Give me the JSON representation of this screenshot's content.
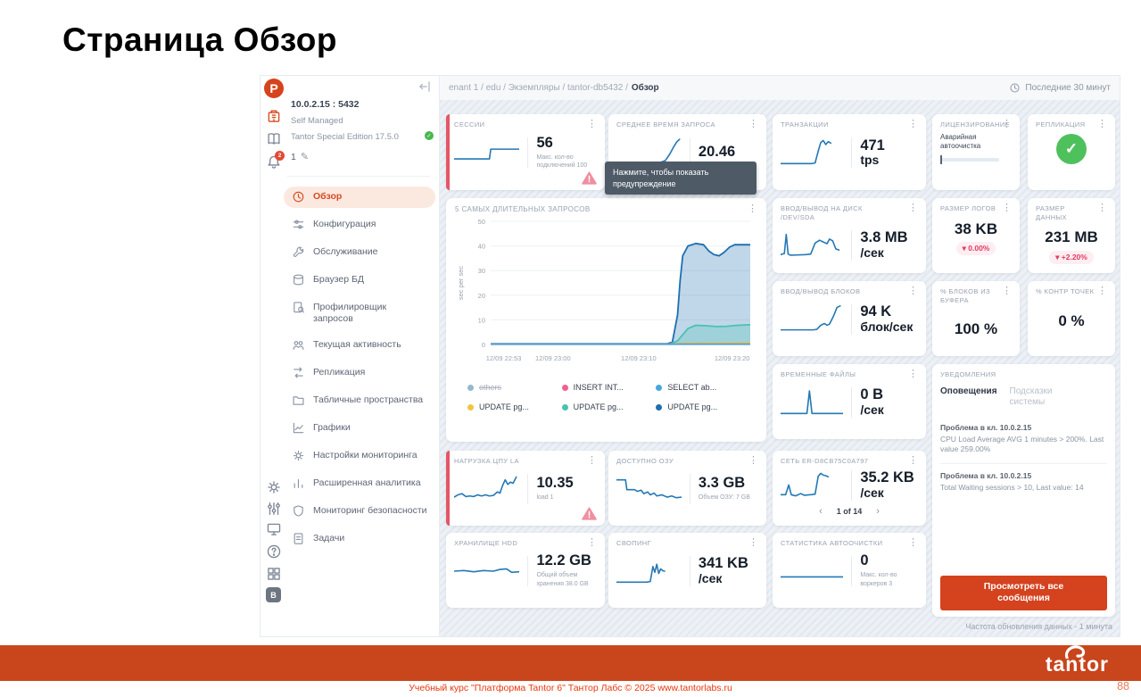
{
  "slide": {
    "title": "Страница Обзор",
    "footer": "Учебный курс \"Платформа Tantor 6\" Тантор Лабс © 2025 www.tantorlabs.ru",
    "page": "88",
    "brand": "tantor"
  },
  "colors": {
    "accent": "#d64a20",
    "footer_bar": "#c9451c",
    "spark_line": "#2478b5",
    "success_green": "#4fc15c",
    "alert_bar_red": "#e45766",
    "badge_red": "#e23a5f",
    "tooltip_bg": "#4e5a66"
  },
  "sidebar": {
    "host": "10.0.2.15 : 5432",
    "managed": "Self Managed",
    "edition": "Tantor Special Edition 17.5.0",
    "instance": "1",
    "bell_badge": "2",
    "bottom_badge": "B",
    "menu": [
      {
        "label": "Обзор",
        "active": true
      },
      {
        "label": "Конфигурация",
        "active": false
      },
      {
        "label": "Обслуживание",
        "active": false
      },
      {
        "label": "Браузер БД",
        "active": false
      },
      {
        "label": "Профилировщик запросов",
        "active": false
      },
      {
        "label": "Текущая активность",
        "active": false
      },
      {
        "label": "Репликация",
        "active": false
      },
      {
        "label": "Табличные пространства",
        "active": false
      },
      {
        "label": "Графики",
        "active": false
      },
      {
        "label": "Настройки мониторинга",
        "active": false
      },
      {
        "label": "Расширенная аналитика",
        "active": false
      },
      {
        "label": "Мониторинг безопасности",
        "active": false
      },
      {
        "label": "Задачи",
        "active": false
      }
    ]
  },
  "topbar": {
    "breadcrumb_path": "enant 1 / edu / Экземпляры / tantor-db5432 /",
    "breadcrumb_current": "Обзор",
    "time_range": "Последние 30 минут"
  },
  "tooltip": {
    "text": "Нажмите, чтобы показать предупреждение"
  },
  "footer_note": "Частота обновления данных - 1 минута",
  "cards": {
    "sessions": {
      "title": "СЕССИИ",
      "value": "56",
      "subtitle": "Макс. кол-во подключений 100",
      "spark": [
        [
          0,
          28
        ],
        [
          54,
          28
        ],
        [
          56,
          62
        ],
        [
          100,
          62
        ]
      ]
    },
    "avg_query": {
      "title": "СРЕДНЕЕ ВРЕМЯ ЗАПРОСА",
      "value": "20.46",
      "spark": [
        [
          0,
          12
        ],
        [
          55,
          12
        ],
        [
          65,
          14
        ],
        [
          75,
          22
        ],
        [
          82,
          45
        ],
        [
          88,
          70
        ],
        [
          93,
          88
        ],
        [
          97,
          96
        ]
      ]
    },
    "transactions": {
      "title": "ТРАНЗАКЦИИ",
      "value": "471",
      "unit": "tps",
      "spark": [
        [
          0,
          12
        ],
        [
          50,
          12
        ],
        [
          55,
          14
        ],
        [
          60,
          55
        ],
        [
          64,
          85
        ],
        [
          68,
          92
        ],
        [
          72,
          78
        ],
        [
          76,
          88
        ],
        [
          80,
          83
        ]
      ]
    },
    "licensing": {
      "title": "ЛИЦЕНЗИРОВАНИЕ",
      "note": "Аварийная автоочистка"
    },
    "replication": {
      "title": "РЕПЛИКАЦИЯ",
      "status_icon": "green-check"
    },
    "disk_io": {
      "title": "ВВОД/ВЫВОД НА ДИСК /DEV/SDA",
      "value": "3.8 MB",
      "unit": "/сек",
      "spark": [
        [
          0,
          18
        ],
        [
          6,
          22
        ],
        [
          9,
          88
        ],
        [
          12,
          20
        ],
        [
          16,
          16
        ],
        [
          40,
          18
        ],
        [
          48,
          20
        ],
        [
          55,
          58
        ],
        [
          62,
          68
        ],
        [
          68,
          62
        ],
        [
          74,
          56
        ],
        [
          78,
          72
        ],
        [
          83,
          66
        ],
        [
          88,
          38
        ],
        [
          93,
          34
        ]
      ]
    },
    "blocks_io": {
      "title": "ВВОД/ВЫВОД БЛОКОВ",
      "value": "94 K",
      "unit": "блок/сек",
      "spark": [
        [
          0,
          14
        ],
        [
          52,
          14
        ],
        [
          58,
          16
        ],
        [
          64,
          30
        ],
        [
          70,
          36
        ],
        [
          74,
          30
        ],
        [
          78,
          34
        ],
        [
          84,
          60
        ],
        [
          90,
          92
        ],
        [
          95,
          97
        ]
      ]
    },
    "temp_files": {
      "title": "ВРЕМЕННЫЕ ФАЙЛЫ",
      "value": "0 B",
      "unit": "/сек",
      "spark": [
        [
          0,
          12
        ],
        [
          42,
          12
        ],
        [
          46,
          90
        ],
        [
          50,
          12
        ],
        [
          100,
          12
        ]
      ]
    },
    "log_size": {
      "title": "РАЗМЕР ЛОГОВ",
      "value": "38 KB",
      "badge": "▾ 0.00%"
    },
    "data_size": {
      "title": "РАЗМЕР ДАННЫХ",
      "value": "231 MB",
      "badge": "▾ +2.20%"
    },
    "buffer_pct": {
      "title": "% БЛОКОВ ИЗ БУФЕРА",
      "value": "100 %"
    },
    "checkpoint_pct": {
      "title": "% КОНТР ТОЧЕК",
      "value": "0 %"
    },
    "cpu_load": {
      "title": "НАГРУЗКА ЦПУ LA",
      "value": "10.35",
      "subtitle": "load 1",
      "spark": [
        [
          0,
          22
        ],
        [
          6,
          30
        ],
        [
          12,
          34
        ],
        [
          18,
          24
        ],
        [
          24,
          26
        ],
        [
          30,
          24
        ],
        [
          36,
          30
        ],
        [
          42,
          26
        ],
        [
          48,
          30
        ],
        [
          54,
          26
        ],
        [
          60,
          28
        ],
        [
          66,
          40
        ],
        [
          70,
          36
        ],
        [
          74,
          62
        ],
        [
          78,
          82
        ],
        [
          82,
          66
        ],
        [
          86,
          74
        ],
        [
          90,
          70
        ],
        [
          95,
          92
        ]
      ]
    },
    "ram": {
      "title": "ДОСТУПНО ОЗУ",
      "value": "3.3 GB",
      "subtitle": "Объем ОЗУ: 7 GB",
      "spark": [
        [
          0,
          82
        ],
        [
          14,
          82
        ],
        [
          16,
          48
        ],
        [
          28,
          48
        ],
        [
          32,
          42
        ],
        [
          38,
          46
        ],
        [
          42,
          34
        ],
        [
          48,
          40
        ],
        [
          52,
          30
        ],
        [
          58,
          36
        ],
        [
          62,
          26
        ],
        [
          70,
          30
        ],
        [
          78,
          22
        ],
        [
          85,
          26
        ],
        [
          92,
          20
        ],
        [
          100,
          22
        ]
      ]
    },
    "network": {
      "title": "СЕТЬ ER-D8CB75C0A797",
      "value": "35.2 KB",
      "unit": "/сек",
      "pager": "1 of 14",
      "spark": [
        [
          0,
          18
        ],
        [
          8,
          18
        ],
        [
          13,
          52
        ],
        [
          17,
          18
        ],
        [
          24,
          14
        ],
        [
          32,
          22
        ],
        [
          38,
          16
        ],
        [
          48,
          18
        ],
        [
          55,
          20
        ],
        [
          60,
          82
        ],
        [
          64,
          92
        ],
        [
          68,
          86
        ],
        [
          72,
          84
        ],
        [
          76,
          80
        ]
      ]
    },
    "storage": {
      "title": "ХРАНИЛИЩЕ HDD",
      "value": "12.2 GB",
      "subtitle": "Общий объем хранения 38.0 GB",
      "spark": [
        [
          0,
          50
        ],
        [
          15,
          52
        ],
        [
          30,
          48
        ],
        [
          45,
          52
        ],
        [
          60,
          50
        ],
        [
          70,
          56
        ],
        [
          80,
          58
        ],
        [
          88,
          46
        ],
        [
          100,
          48
        ]
      ]
    },
    "swap": {
      "title": "СВОПИНГ",
      "value": "341 KB",
      "unit": "/сек",
      "spark": [
        [
          0,
          12
        ],
        [
          46,
          12
        ],
        [
          52,
          14
        ],
        [
          56,
          66
        ],
        [
          59,
          46
        ],
        [
          62,
          74
        ],
        [
          65,
          42
        ],
        [
          68,
          58
        ],
        [
          71,
          52
        ],
        [
          74,
          50
        ]
      ]
    },
    "autovacuum": {
      "title": "СТАТИСТИКА АВТООЧИСТКИ",
      "value": "0",
      "subtitle": "Макс. кол-во воркеров 3",
      "spark": [
        [
          0,
          30
        ],
        [
          100,
          30
        ]
      ]
    }
  },
  "notifications": {
    "title": "УВЕДОМЛЕНИЯ",
    "tabs": [
      "Оповещения",
      "Подсказки системы"
    ],
    "alerts": [
      {
        "title": "Проблема в кл. 10.0.2.15",
        "text": "CPU Load Average AVG 1 minutes > 200%. Last value 259.00%"
      },
      {
        "title": "Проблема в кл. 10.0.2.15",
        "text": "Total Waiting sessions > 10, Last value: 14"
      }
    ],
    "button": "Просмотреть все сообщения"
  },
  "chart_data": {
    "type": "area",
    "title": "5 САМЫХ ДЛИТЕЛЬНЫХ ЗАПРОСОВ",
    "ylabel": "sec per sec",
    "xlabel": "",
    "ylim": [
      0,
      50
    ],
    "yticks": [
      0,
      10,
      20,
      30,
      40,
      50
    ],
    "grid": true,
    "legend_position": "bottom",
    "xticks": [
      {
        "label": "12/09 22:53",
        "pos": 5
      },
      {
        "label": "12/09 23:00",
        "pos": 24
      },
      {
        "label": "12/09 23:10",
        "pos": 57
      },
      {
        "label": "12/09 23:20",
        "pos": 93
      }
    ],
    "series": [
      {
        "name": "UPDATE pg... (6)",
        "color": "#1e6fb0",
        "fill": true,
        "points": [
          [
            0,
            0.3
          ],
          [
            68,
            0.3
          ],
          [
            70,
            1
          ],
          [
            72,
            12
          ],
          [
            73,
            26
          ],
          [
            74,
            36
          ],
          [
            76,
            40
          ],
          [
            79,
            41
          ],
          [
            82,
            40.5
          ],
          [
            84,
            38
          ],
          [
            86,
            36.5
          ],
          [
            88,
            36
          ],
          [
            90,
            37.5
          ],
          [
            92,
            39.5
          ],
          [
            94,
            40.5
          ],
          [
            100,
            40.5
          ]
        ]
      },
      {
        "name": "UPDATE pg... (5)",
        "color": "#49c2b1",
        "fill": true,
        "points": [
          [
            0,
            0.2
          ],
          [
            69,
            0.2
          ],
          [
            72,
            1.5
          ],
          [
            74,
            4
          ],
          [
            76,
            6.5
          ],
          [
            79,
            7.8
          ],
          [
            83,
            7.6
          ],
          [
            87,
            7.3
          ],
          [
            91,
            7.4
          ],
          [
            95,
            7.8
          ],
          [
            100,
            8
          ]
        ]
      },
      {
        "name": "UPDATE pg... (4)",
        "color": "#f3c440",
        "fill": false,
        "points": [
          [
            0,
            0.1
          ],
          [
            70,
            0.1
          ],
          [
            74,
            0.5
          ],
          [
            100,
            0.6
          ]
        ]
      },
      {
        "name": "INSERT INT...",
        "color": "#f0608d",
        "fill": false,
        "points": [
          [
            0,
            0.1
          ],
          [
            100,
            0.1
          ]
        ]
      },
      {
        "name": "SELECT ab...",
        "color": "#46a7dd",
        "fill": false,
        "points": [
          [
            0,
            0.15
          ],
          [
            100,
            0.15
          ]
        ]
      }
    ],
    "legend": [
      {
        "label": "others",
        "color": "#93b9cf",
        "disabled": true
      },
      {
        "label": "INSERT INT...",
        "color": "#f0608d",
        "disabled": false
      },
      {
        "label": "SELECT ab...",
        "color": "#46a7dd",
        "disabled": false
      },
      {
        "label": "UPDATE pg...",
        "color": "#f3c440",
        "disabled": false
      },
      {
        "label": "UPDATE pg...",
        "color": "#49c2b1",
        "disabled": false
      },
      {
        "label": "UPDATE pg...",
        "color": "#1e6fb0",
        "disabled": false
      }
    ]
  }
}
